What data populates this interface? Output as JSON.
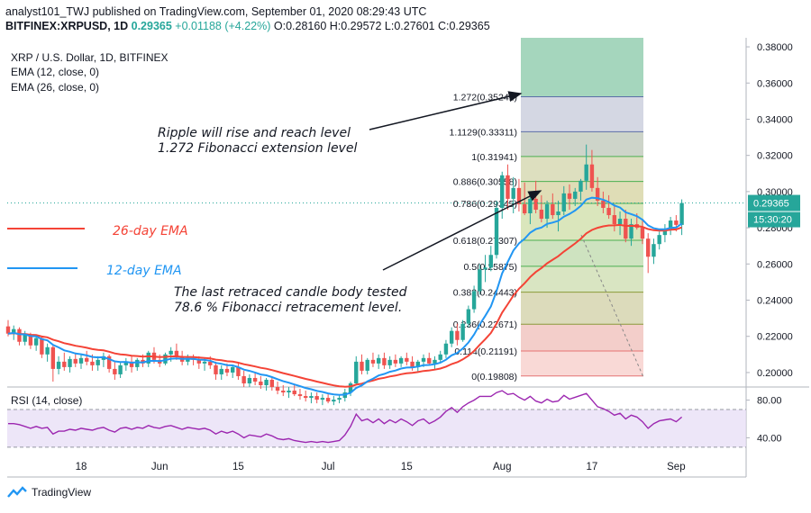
{
  "header": {
    "publisher_line": "analyst101_TWJ published on TradingView.com, September 01, 2020 08:29:43 UTC",
    "symbol": "BITFINEX:XRPUSD, 1D",
    "close": "0.29365",
    "change": "+0.01188 (+4.22%)",
    "ohlc": "O:0.28160 H:0.29572 L:0.27601 C:0.29365"
  },
  "legend": {
    "title": "XRP / U.S. Dollar, 1D, BITFINEX",
    "ema12": "EMA (12, close, 0)",
    "ema26": "EMA (26, close, 0)"
  },
  "annotations": {
    "ema26_label": "26-day EMA",
    "ema12_label": "12-day EMA",
    "rise_line1": "Ripple will rise and reach level",
    "rise_line2": "1.272 Fibonacci extension level",
    "retrace_line1": "The last retraced candle body tested",
    "retrace_line2": "78.6 % Fibonacci retracement level."
  },
  "price_badge": {
    "value": "0.29365",
    "time": "15:30:20"
  },
  "rsi": {
    "label": "RSI (14, close)"
  },
  "footer": {
    "brand": "TradingView"
  },
  "colors": {
    "up": "#26a69a",
    "down": "#ef5350",
    "ema12": "#2196f3",
    "ema26": "#f44336",
    "rsi_line": "#9c27b0",
    "rsi_band": "#e6dcf5",
    "badge": "#26a69a"
  },
  "chart_data": {
    "type": "candlestick",
    "y_axis_ticks": [
      "0.38000",
      "0.36000",
      "0.34000",
      "0.32000",
      "0.30000",
      "0.28000",
      "0.26000",
      "0.24000",
      "0.22000",
      "0.20000"
    ],
    "ylim": [
      0.193,
      0.385
    ],
    "x_axis_labels": [
      {
        "label": "18",
        "index": 13
      },
      {
        "label": "Jun",
        "index": 27
      },
      {
        "label": "15",
        "index": 41
      },
      {
        "label": "Jul",
        "index": 57
      },
      {
        "label": "15",
        "index": 71
      },
      {
        "label": "Aug",
        "index": 88
      },
      {
        "label": "17",
        "index": 104
      },
      {
        "label": "Sep",
        "index": 119
      }
    ],
    "candles": [
      [
        0.2255,
        0.229,
        0.22,
        0.2215
      ],
      [
        0.2215,
        0.226,
        0.218,
        0.224
      ],
      [
        0.224,
        0.225,
        0.215,
        0.217
      ],
      [
        0.217,
        0.223,
        0.215,
        0.221
      ],
      [
        0.221,
        0.222,
        0.213,
        0.215
      ],
      [
        0.215,
        0.221,
        0.212,
        0.219
      ],
      [
        0.219,
        0.22,
        0.208,
        0.21
      ],
      [
        0.21,
        0.216,
        0.206,
        0.214
      ],
      [
        0.214,
        0.215,
        0.195,
        0.202
      ],
      [
        0.202,
        0.209,
        0.199,
        0.206
      ],
      [
        0.206,
        0.211,
        0.201,
        0.203
      ],
      [
        0.203,
        0.209,
        0.2,
        0.2075
      ],
      [
        0.2075,
        0.211,
        0.203,
        0.205
      ],
      [
        0.205,
        0.21,
        0.202,
        0.208
      ],
      [
        0.208,
        0.212,
        0.204,
        0.206
      ],
      [
        0.206,
        0.21,
        0.201,
        0.204
      ],
      [
        0.204,
        0.209,
        0.201,
        0.207
      ],
      [
        0.207,
        0.211,
        0.203,
        0.209
      ],
      [
        0.209,
        0.21,
        0.2,
        0.202
      ],
      [
        0.202,
        0.206,
        0.196,
        0.199
      ],
      [
        0.199,
        0.206,
        0.197,
        0.204
      ],
      [
        0.204,
        0.208,
        0.201,
        0.206
      ],
      [
        0.206,
        0.209,
        0.2,
        0.203
      ],
      [
        0.203,
        0.208,
        0.201,
        0.207
      ],
      [
        0.207,
        0.21,
        0.203,
        0.205
      ],
      [
        0.205,
        0.212,
        0.203,
        0.211
      ],
      [
        0.211,
        0.214,
        0.205,
        0.207
      ],
      [
        0.207,
        0.21,
        0.203,
        0.205
      ],
      [
        0.205,
        0.211,
        0.204,
        0.21
      ],
      [
        0.21,
        0.214,
        0.206,
        0.212
      ],
      [
        0.212,
        0.216,
        0.207,
        0.209
      ],
      [
        0.209,
        0.212,
        0.204,
        0.206
      ],
      [
        0.206,
        0.21,
        0.204,
        0.208
      ],
      [
        0.208,
        0.21,
        0.204,
        0.207
      ],
      [
        0.207,
        0.209,
        0.202,
        0.205
      ],
      [
        0.205,
        0.208,
        0.201,
        0.206
      ],
      [
        0.206,
        0.209,
        0.202,
        0.204
      ],
      [
        0.204,
        0.206,
        0.196,
        0.199
      ],
      [
        0.199,
        0.204,
        0.196,
        0.202
      ],
      [
        0.202,
        0.205,
        0.198,
        0.2
      ],
      [
        0.2,
        0.204,
        0.197,
        0.203
      ],
      [
        0.203,
        0.205,
        0.196,
        0.198
      ],
      [
        0.198,
        0.201,
        0.192,
        0.194
      ],
      [
        0.194,
        0.199,
        0.192,
        0.197
      ],
      [
        0.197,
        0.2,
        0.193,
        0.195
      ],
      [
        0.195,
        0.198,
        0.191,
        0.193
      ],
      [
        0.193,
        0.197,
        0.19,
        0.196
      ],
      [
        0.196,
        0.197,
        0.19,
        0.192
      ],
      [
        0.192,
        0.195,
        0.188,
        0.19
      ],
      [
        0.19,
        0.193,
        0.187,
        0.189
      ],
      [
        0.189,
        0.192,
        0.186,
        0.19
      ],
      [
        0.19,
        0.193,
        0.187,
        0.188
      ],
      [
        0.188,
        0.191,
        0.185,
        0.187
      ],
      [
        0.187,
        0.19,
        0.184,
        0.186
      ],
      [
        0.186,
        0.189,
        0.183,
        0.187
      ],
      [
        0.187,
        0.189,
        0.183,
        0.185
      ],
      [
        0.185,
        0.188,
        0.182,
        0.186
      ],
      [
        0.186,
        0.188,
        0.183,
        0.184
      ],
      [
        0.184,
        0.187,
        0.182,
        0.185
      ],
      [
        0.185,
        0.188,
        0.183,
        0.186
      ],
      [
        0.186,
        0.191,
        0.184,
        0.189
      ],
      [
        0.189,
        0.195,
        0.187,
        0.194
      ],
      [
        0.194,
        0.209,
        0.193,
        0.206
      ],
      [
        0.206,
        0.21,
        0.199,
        0.201
      ],
      [
        0.201,
        0.208,
        0.199,
        0.207
      ],
      [
        0.207,
        0.211,
        0.203,
        0.205
      ],
      [
        0.205,
        0.21,
        0.202,
        0.208
      ],
      [
        0.208,
        0.211,
        0.202,
        0.204
      ],
      [
        0.204,
        0.209,
        0.202,
        0.207
      ],
      [
        0.207,
        0.21,
        0.203,
        0.205
      ],
      [
        0.205,
        0.209,
        0.203,
        0.208
      ],
      [
        0.208,
        0.211,
        0.204,
        0.206
      ],
      [
        0.206,
        0.209,
        0.201,
        0.203
      ],
      [
        0.203,
        0.207,
        0.2,
        0.206
      ],
      [
        0.206,
        0.21,
        0.203,
        0.208
      ],
      [
        0.208,
        0.211,
        0.204,
        0.205
      ],
      [
        0.205,
        0.209,
        0.202,
        0.207
      ],
      [
        0.207,
        0.212,
        0.205,
        0.21
      ],
      [
        0.21,
        0.218,
        0.208,
        0.216
      ],
      [
        0.216,
        0.225,
        0.214,
        0.223
      ],
      [
        0.223,
        0.227,
        0.215,
        0.218
      ],
      [
        0.218,
        0.229,
        0.217,
        0.227
      ],
      [
        0.227,
        0.237,
        0.225,
        0.235
      ],
      [
        0.235,
        0.248,
        0.233,
        0.245
      ],
      [
        0.245,
        0.26,
        0.243,
        0.257
      ],
      [
        0.257,
        0.265,
        0.25,
        0.258
      ],
      [
        0.258,
        0.27,
        0.256,
        0.265
      ],
      [
        0.265,
        0.295,
        0.263,
        0.291
      ],
      [
        0.291,
        0.311,
        0.285,
        0.309
      ],
      [
        0.309,
        0.315,
        0.29,
        0.296
      ],
      [
        0.296,
        0.308,
        0.288,
        0.302
      ],
      [
        0.302,
        0.307,
        0.289,
        0.293
      ],
      [
        0.293,
        0.305,
        0.287,
        0.288
      ],
      [
        0.288,
        0.299,
        0.282,
        0.296
      ],
      [
        0.296,
        0.306,
        0.288,
        0.29
      ],
      [
        0.29,
        0.298,
        0.283,
        0.285
      ],
      [
        0.285,
        0.295,
        0.28,
        0.293
      ],
      [
        0.293,
        0.299,
        0.285,
        0.287
      ],
      [
        0.287,
        0.295,
        0.278,
        0.289
      ],
      [
        0.289,
        0.303,
        0.287,
        0.299
      ],
      [
        0.299,
        0.304,
        0.29,
        0.296
      ],
      [
        0.296,
        0.302,
        0.292,
        0.3
      ],
      [
        0.3,
        0.307,
        0.295,
        0.306
      ],
      [
        0.306,
        0.326,
        0.301,
        0.315
      ],
      [
        0.315,
        0.323,
        0.3,
        0.302
      ],
      [
        0.302,
        0.308,
        0.292,
        0.295
      ],
      [
        0.295,
        0.3,
        0.288,
        0.291
      ],
      [
        0.291,
        0.298,
        0.285,
        0.287
      ],
      [
        0.287,
        0.293,
        0.278,
        0.282
      ],
      [
        0.282,
        0.289,
        0.276,
        0.285
      ],
      [
        0.285,
        0.29,
        0.272,
        0.274
      ],
      [
        0.274,
        0.285,
        0.27,
        0.282
      ],
      [
        0.282,
        0.288,
        0.279,
        0.28
      ],
      [
        0.28,
        0.285,
        0.271,
        0.274
      ],
      [
        0.274,
        0.277,
        0.255,
        0.264
      ],
      [
        0.264,
        0.274,
        0.26,
        0.271
      ],
      [
        0.271,
        0.278,
        0.268,
        0.276
      ],
      [
        0.276,
        0.282,
        0.272,
        0.279
      ],
      [
        0.279,
        0.286,
        0.276,
        0.284
      ],
      [
        0.284,
        0.287,
        0.278,
        0.2816
      ],
      [
        0.2816,
        0.2957,
        0.276,
        0.2937
      ]
    ],
    "fibonacci": {
      "base_ratio": 0,
      "levels": [
        {
          "ratio": 1.272,
          "label": "1.272(0.35241)",
          "price": 0.35241
        },
        {
          "ratio": 1.1129,
          "label": "1.1129(0.33311)",
          "price": 0.33311
        },
        {
          "ratio": 1,
          "label": "1(0.31941)",
          "price": 0.31941
        },
        {
          "ratio": 0.886,
          "label": "0.886(0.30558)",
          "price": 0.30558
        },
        {
          "ratio": 0.786,
          "label": "0.786(0.29345)",
          "price": 0.29345
        },
        {
          "ratio": 0.618,
          "label": "0.618(0.27307)",
          "price": 0.27307
        },
        {
          "ratio": 0.5,
          "label": "0.5(0.25875)",
          "price": 0.25875
        },
        {
          "ratio": 0.382,
          "label": "0.382(0.24443)",
          "price": 0.24443
        },
        {
          "ratio": 0.236,
          "label": "0.236(0.22671)",
          "price": 0.22671
        },
        {
          "ratio": 0.114,
          "label": "0.114(0.21191)",
          "price": 0.21191
        },
        {
          "ratio": 0,
          "label": "0(0.19808)",
          "price": 0.19808
        }
      ]
    },
    "rsi_axis_ticks": [
      "80.00",
      "40.00"
    ],
    "rsi_ylim": [
      27,
      92
    ],
    "rsi_band": [
      30,
      70
    ],
    "rsi_values": [
      55,
      55,
      54,
      52,
      50,
      52,
      50,
      51,
      44,
      47,
      47,
      49,
      48,
      50,
      49,
      48,
      50,
      51,
      48,
      46,
      50,
      51,
      49,
      51,
      50,
      53,
      51,
      50,
      52,
      53,
      51,
      49,
      51,
      50,
      49,
      50,
      48,
      44,
      47,
      45,
      47,
      44,
      40,
      43,
      42,
      41,
      44,
      42,
      39,
      38,
      39,
      37,
      36,
      35,
      36,
      35,
      36,
      35,
      36,
      37,
      43,
      52,
      65,
      58,
      60,
      56,
      60,
      55,
      59,
      56,
      60,
      57,
      53,
      58,
      60,
      55,
      58,
      62,
      68,
      72,
      67,
      73,
      77,
      80,
      84,
      84,
      84,
      88,
      90,
      86,
      87,
      83,
      80,
      84,
      79,
      77,
      81,
      78,
      79,
      85,
      81,
      83,
      85,
      87,
      80,
      73,
      71,
      68,
      64,
      66,
      60,
      64,
      62,
      57,
      50,
      55,
      58,
      59,
      60,
      57,
      62
    ]
  }
}
